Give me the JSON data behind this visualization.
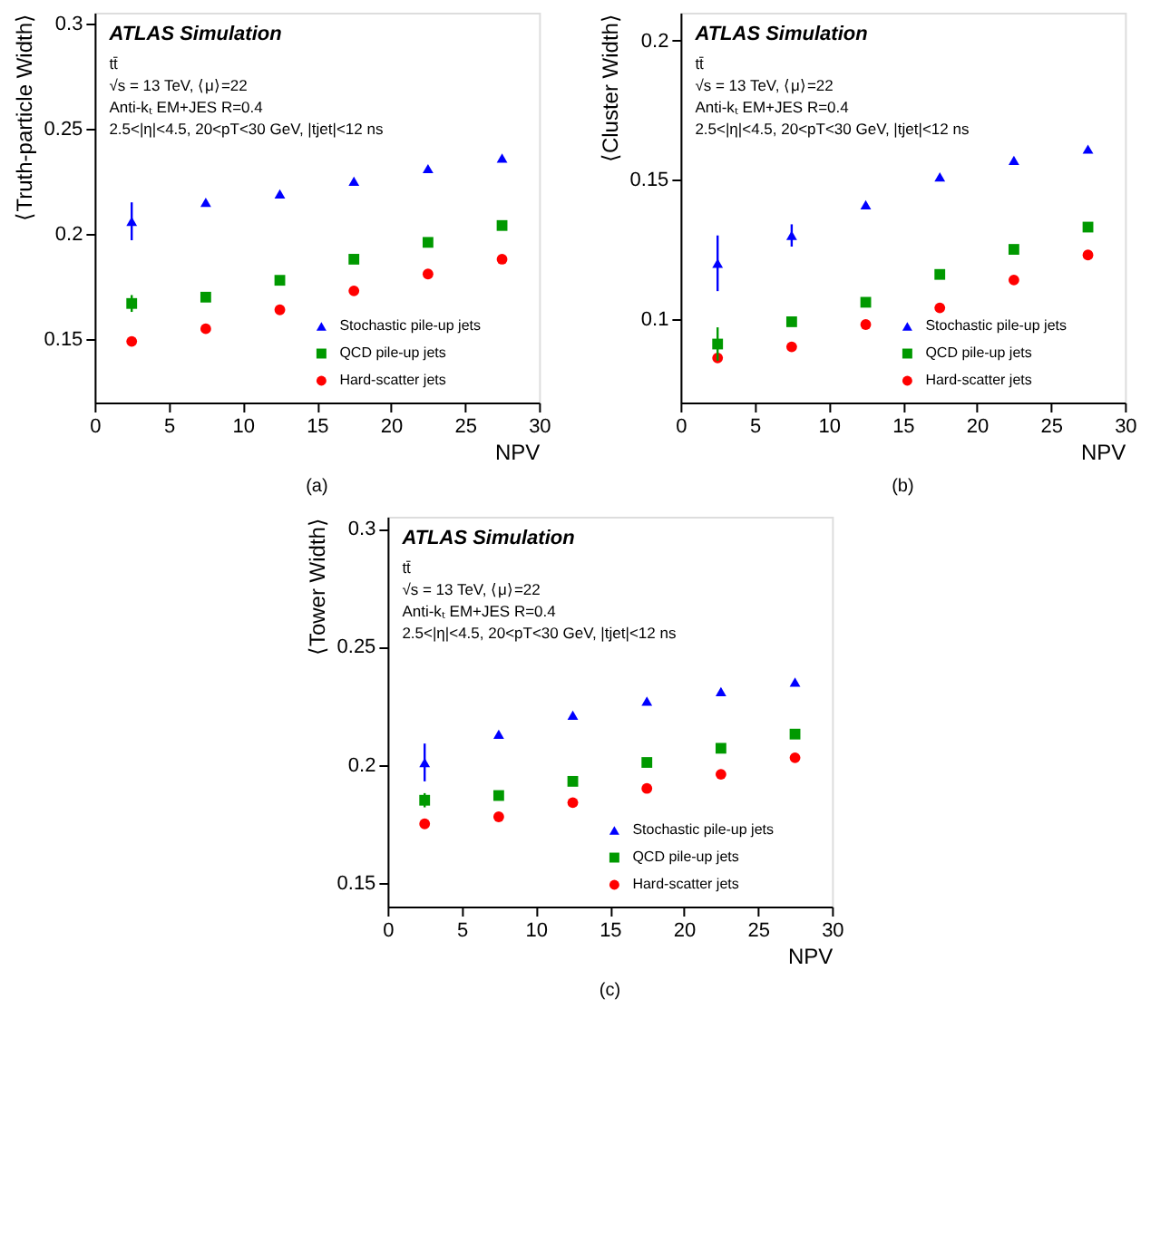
{
  "chart_data": [
    {
      "type": "scatter",
      "ylabel": "⟨Truth-particle Width⟩",
      "xlabel": "NPV",
      "xlim": [
        0,
        30
      ],
      "xticks": [
        0,
        5,
        10,
        15,
        20,
        25,
        30
      ],
      "ylim": [
        0.12,
        0.305
      ],
      "yticks": [
        0.15,
        0.2,
        0.25,
        0.3
      ],
      "grid": false,
      "legend": "bottom right",
      "x": [
        2.5,
        7.5,
        12.5,
        17.5,
        22.5,
        27.5
      ],
      "annotations": [
        "ATLAS Simulation",
        "tt̄",
        "√s = 13 TeV, ⟨μ⟩=22",
        "Anti-kₜ EM+JES R=0.4",
        "2.5<|η|<4.5, 20<pT<30 GeV, |tjet|<12 ns",
        "(a)"
      ],
      "series": [
        {
          "name": "Stochastic pile-up jets",
          "color": "#0000ff",
          "marker": "triangle",
          "values": [
            0.206,
            0.215,
            0.219,
            0.225,
            0.231,
            0.236
          ],
          "errors": [
            0.009,
            null,
            null,
            null,
            null,
            null
          ]
        },
        {
          "name": "QCD pile-up jets",
          "color": "#009900",
          "marker": "square",
          "values": [
            0.167,
            0.17,
            0.178,
            0.188,
            0.196,
            0.204
          ],
          "errors": [
            0.004,
            null,
            null,
            null,
            null,
            null
          ]
        },
        {
          "name": "Hard-scatter jets",
          "color": "#ff0000",
          "marker": "circle",
          "values": [
            0.149,
            0.155,
            0.164,
            0.173,
            0.181,
            0.188
          ],
          "errors": [
            null,
            null,
            null,
            null,
            null,
            null
          ]
        }
      ]
    },
    {
      "type": "scatter",
      "ylabel": "⟨Cluster Width⟩",
      "xlabel": "NPV",
      "xlim": [
        0,
        30
      ],
      "xticks": [
        0,
        5,
        10,
        15,
        20,
        25,
        30
      ],
      "ylim": [
        0.07,
        0.21
      ],
      "yticks": [
        0.1,
        0.15,
        0.2
      ],
      "grid": false,
      "legend": "bottom right",
      "x": [
        2.5,
        7.5,
        12.5,
        17.5,
        22.5,
        27.5
      ],
      "annotations": [
        "ATLAS Simulation",
        "tt̄",
        "√s = 13 TeV, ⟨μ⟩=22",
        "Anti-kₜ EM+JES R=0.4",
        "2.5<|η|<4.5, 20<pT<30 GeV, |tjet|<12 ns",
        "(b)"
      ],
      "series": [
        {
          "name": "Stochastic pile-up jets",
          "color": "#0000ff",
          "marker": "triangle",
          "values": [
            0.12,
            0.13,
            0.141,
            0.151,
            0.157,
            0.161
          ],
          "errors": [
            0.01,
            0.004,
            null,
            null,
            null,
            null
          ]
        },
        {
          "name": "QCD pile-up jets",
          "color": "#009900",
          "marker": "square",
          "values": [
            0.091,
            0.099,
            0.106,
            0.116,
            0.125,
            0.133
          ],
          "errors": [
            0.006,
            null,
            null,
            null,
            null,
            null
          ]
        },
        {
          "name": "Hard-scatter jets",
          "color": "#ff0000",
          "marker": "circle",
          "values": [
            0.086,
            0.09,
            0.098,
            0.104,
            0.114,
            0.123
          ],
          "errors": [
            null,
            null,
            null,
            null,
            null,
            null
          ]
        }
      ]
    },
    {
      "type": "scatter",
      "ylabel": "⟨Tower Width⟩",
      "xlabel": "NPV",
      "xlim": [
        0,
        30
      ],
      "xticks": [
        0,
        5,
        10,
        15,
        20,
        25,
        30
      ],
      "ylim": [
        0.14,
        0.305
      ],
      "yticks": [
        0.15,
        0.2,
        0.25,
        0.3
      ],
      "grid": false,
      "legend": "bottom right",
      "x": [
        2.5,
        7.5,
        12.5,
        17.5,
        22.5,
        27.5
      ],
      "annotations": [
        "ATLAS Simulation",
        "tt̄",
        "√s = 13 TeV, ⟨μ⟩=22",
        "Anti-kₜ EM+JES R=0.4",
        "2.5<|η|<4.5, 20<pT<30 GeV, |tjet|<12 ns",
        "(c)"
      ],
      "series": [
        {
          "name": "Stochastic pile-up jets",
          "color": "#0000ff",
          "marker": "triangle",
          "values": [
            0.201,
            0.213,
            0.221,
            0.227,
            0.231,
            0.235
          ],
          "errors": [
            0.008,
            null,
            null,
            null,
            null,
            null
          ]
        },
        {
          "name": "QCD pile-up jets",
          "color": "#009900",
          "marker": "square",
          "values": [
            0.185,
            0.187,
            0.193,
            0.201,
            0.207,
            0.213
          ],
          "errors": [
            0.003,
            null,
            null,
            null,
            null,
            null
          ]
        },
        {
          "name": "Hard-scatter jets",
          "color": "#ff0000",
          "marker": "circle",
          "values": [
            0.175,
            0.178,
            0.184,
            0.19,
            0.196,
            0.203
          ],
          "errors": [
            null,
            null,
            null,
            null,
            null,
            null
          ]
        }
      ]
    }
  ]
}
